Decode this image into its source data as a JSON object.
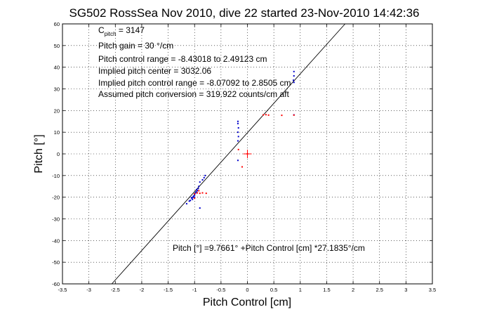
{
  "chart_data": {
    "type": "scatter",
    "title": "SG502 RossSea Nov 2010, dive 22 started 23-Nov-2010 14:42:36",
    "xlabel": "Pitch Control [cm]",
    "ylabel": "Pitch [°]",
    "xlim": [
      -3.5,
      3.5
    ],
    "ylim": [
      -60,
      60
    ],
    "xticks": [
      "-3.5",
      "-3",
      "-2.5",
      "-2",
      "-1.5",
      "-1",
      "-0.5",
      "0",
      "0.5",
      "1",
      "1.5",
      "2",
      "2.5",
      "3",
      "3.5"
    ],
    "yticks": [
      "-60",
      "-50",
      "-40",
      "-30",
      "-20",
      "-10",
      "0",
      "10",
      "20",
      "30",
      "40",
      "50",
      "60"
    ],
    "grid": true,
    "annotations": {
      "c_pitch_prefix": "C",
      "c_pitch_sub": "pitch",
      "c_pitch_value": " = 3147",
      "pitch_gain": "Pitch gain = 30 °/cm",
      "pitch_control_range": "Pitch control range = -8.43018 to 2.49123 cm",
      "implied_pitch_center": "Implied pitch center = 3032.06",
      "implied_pitch_control_range": "Implied pitch control range = -8.07092 to 2.8505 cm",
      "assumed_pitch_conversion": "Assumed pitch conversion = 319.922 counts/cm aft",
      "fit_equation": "Pitch [°] =9.7661° +Pitch Control [cm] *27.1835°/cm"
    },
    "fit_line": {
      "intercept": 9.7661,
      "slope": 27.1835
    },
    "center_marker": {
      "x": 0,
      "y": 0,
      "color": "#ff0000"
    },
    "series": [
      {
        "color": "#0000cc",
        "points": [
          [
            -1.05,
            -20.5
          ],
          [
            -1.03,
            -20.0
          ],
          [
            -1.02,
            -19.5
          ],
          [
            -1.0,
            -19.0
          ],
          [
            -1.04,
            -21.0
          ],
          [
            -1.08,
            -21.5
          ],
          [
            -1.0,
            -18.5
          ],
          [
            -0.98,
            -18.0
          ],
          [
            -0.97,
            -17.5
          ],
          [
            -0.95,
            -17.0
          ],
          [
            -0.96,
            -16.5
          ],
          [
            -0.93,
            -16.0
          ],
          [
            -0.92,
            -15.0
          ],
          [
            -1.0,
            -20.0
          ],
          [
            -1.06,
            -20.2
          ],
          [
            -1.1,
            -21.8
          ],
          [
            -1.15,
            -23.0
          ],
          [
            -0.9,
            -13.0
          ],
          [
            -0.85,
            -12.0
          ],
          [
            -0.82,
            -11.0
          ],
          [
            -0.8,
            -10.0
          ],
          [
            -0.9,
            -25.0
          ],
          [
            -0.18,
            15.0
          ],
          [
            -0.18,
            14.0
          ],
          [
            -0.17,
            12.0
          ],
          [
            -0.18,
            10.0
          ],
          [
            -0.17,
            8.0
          ],
          [
            -0.18,
            6.0
          ],
          [
            -0.18,
            -3.0
          ],
          [
            0.88,
            38.0
          ],
          [
            0.88,
            36.0
          ],
          [
            0.87,
            34.0
          ],
          [
            0.88,
            33.0
          ],
          [
            0.88,
            18.0
          ]
        ]
      },
      {
        "color": "#ff0000",
        "points": [
          [
            -1.0,
            -18.5
          ],
          [
            -0.95,
            -18.0
          ],
          [
            -0.9,
            -18.2
          ],
          [
            -0.85,
            -18.0
          ],
          [
            -0.78,
            -18.2
          ],
          [
            -1.0,
            -20.5
          ],
          [
            -0.92,
            -17.0
          ],
          [
            -0.1,
            -6.0
          ],
          [
            0.0,
            0.0
          ],
          [
            0.3,
            18.0
          ],
          [
            0.35,
            18.1
          ],
          [
            0.4,
            17.9
          ],
          [
            0.65,
            17.8
          ],
          [
            0.88,
            17.9
          ],
          [
            -0.17,
            2.0
          ]
        ]
      }
    ]
  }
}
